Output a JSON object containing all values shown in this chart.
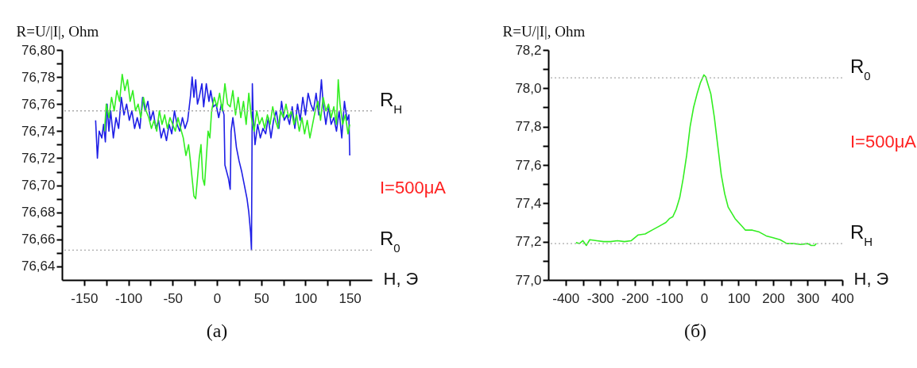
{
  "chart_data": [
    {
      "type": "line",
      "title": "(а)",
      "xlabel": "H, Э",
      "ylabel": "R=U/|I|, Ohm",
      "annotations": [
        "I=500μA"
      ],
      "xlim": [
        -175,
        175
      ],
      "xticks": [
        -150,
        {
          "value": -125,
          "label": null
        },
        -100,
        {
          "value": -75,
          "label": null
        },
        -50,
        {
          "value": -25,
          "label": null
        },
        0,
        {
          "value": 25,
          "label": null
        },
        50,
        {
          "value": 75,
          "label": null
        },
        100,
        {
          "value": 125,
          "label": null
        },
        150
      ],
      "ylim": [
        76.63,
        76.8
      ],
      "yticks": [
        {
          "value": 76.64,
          "label": "76,64"
        },
        {
          "value": 76.65,
          "label": null
        },
        {
          "value": 76.66,
          "label": "76,66"
        },
        {
          "value": 76.67,
          "label": null
        },
        {
          "value": 76.68,
          "label": "76,68"
        },
        {
          "value": 76.69,
          "label": null
        },
        {
          "value": 76.7,
          "label": "76,70"
        },
        {
          "value": 76.71,
          "label": null
        },
        {
          "value": 76.72,
          "label": "76,72"
        },
        {
          "value": 76.73,
          "label": null
        },
        {
          "value": 76.74,
          "label": "76,74"
        },
        {
          "value": 76.75,
          "label": null
        },
        {
          "value": 76.76,
          "label": "76,76"
        },
        {
          "value": 76.77,
          "label": null
        },
        {
          "value": 76.78,
          "label": "76,78"
        },
        {
          "value": 76.79,
          "label": null
        },
        {
          "value": 76.8,
          "label": "76,80"
        }
      ],
      "ref_lines": [
        {
          "axis": "y",
          "value": 76.755,
          "label": "R$_{H}$",
          "color": "#aaaaaa",
          "line_style": "dotted"
        },
        {
          "axis": "y",
          "value": 76.652,
          "label": "R$_{0}$",
          "color": "#aaaaaa",
          "line_style": "dotted"
        }
      ],
      "series": [
        {
          "color": "#1f1fe6",
          "x": [
            -137,
            -135,
            -133,
            -130,
            -128,
            -126,
            -124,
            -122,
            -120,
            -117,
            -114,
            -111,
            -108,
            -105,
            -102,
            -99,
            -96,
            -93,
            -90,
            -87,
            -84,
            -81,
            -78,
            -75,
            -72,
            -69,
            -66,
            -63,
            -60,
            -57,
            -54,
            -51,
            -48,
            -45,
            -42,
            -39,
            -36,
            -33,
            -30,
            -28,
            -26,
            -24,
            -22,
            -20,
            -17,
            -15,
            -12,
            -9,
            -7,
            -4,
            -1,
            2,
            5,
            8,
            9,
            11,
            13,
            15,
            16,
            18,
            20,
            22,
            25,
            28,
            31,
            34,
            36,
            38,
            39,
            40,
            41,
            43,
            46,
            49,
            52,
            55,
            58,
            61,
            64,
            67,
            70,
            73,
            76,
            79,
            82,
            85,
            88,
            91,
            94,
            97,
            100,
            103,
            106,
            109,
            112,
            115,
            118,
            120,
            123,
            126,
            129,
            132,
            135,
            138,
            141,
            144,
            147,
            149,
            150
          ],
          "values": [
            76.748,
            76.72,
            76.74,
            76.735,
            76.745,
            76.732,
            76.76,
            76.74,
            76.755,
            76.735,
            76.75,
            76.742,
            76.765,
            76.752,
            76.76,
            76.748,
            76.755,
            76.742,
            76.75,
            76.742,
            76.765,
            76.755,
            76.762,
            76.748,
            76.755,
            76.742,
            76.748,
            76.735,
            76.742,
            76.733,
            76.745,
            76.738,
            76.755,
            76.745,
            76.74,
            76.75,
            76.742,
            76.748,
            76.765,
            76.78,
            76.765,
            76.778,
            76.76,
            76.765,
            76.775,
            76.758,
            76.775,
            76.762,
            76.77,
            76.758,
            76.76,
            76.75,
            76.76,
            76.752,
            76.715,
            76.71,
            76.705,
            76.697,
            76.74,
            76.75,
            76.74,
            76.728,
            76.718,
            76.71,
            76.7,
            76.69,
            76.68,
            76.665,
            76.652,
            76.775,
            76.75,
            76.73,
            76.745,
            76.735,
            76.742,
            76.738,
            76.75,
            76.735,
            76.748,
            76.755,
            76.742,
            76.762,
            76.748,
            76.752,
            76.745,
            76.758,
            76.742,
            76.76,
            76.748,
            76.765,
            76.752,
            76.768,
            76.76,
            76.755,
            76.768,
            76.752,
            76.778,
            76.76,
            76.745,
            76.758,
            76.745,
            76.75,
            76.74,
            76.755,
            76.735,
            76.762,
            76.748,
            76.752,
            76.722
          ]
        },
        {
          "color": "#33ee22",
          "x": [
            -127,
            -125,
            -122,
            -119,
            -116,
            -113,
            -110,
            -107,
            -104,
            -101,
            -98,
            -95,
            -92,
            -89,
            -86,
            -83,
            -80,
            -77,
            -74,
            -71,
            -68,
            -65,
            -62,
            -59,
            -56,
            -53,
            -50,
            -47,
            -44,
            -41,
            -38,
            -35,
            -32,
            -30,
            -28,
            -26,
            -24,
            -22,
            -20,
            -18,
            -16,
            -14,
            -12,
            -10,
            -8,
            -6,
            -3,
            0,
            3,
            6,
            9,
            12,
            15,
            18,
            21,
            24,
            27,
            30,
            33,
            36,
            39,
            42,
            45,
            48,
            51,
            54,
            57,
            60,
            63,
            66,
            69,
            72,
            75,
            78,
            81,
            84,
            87,
            90,
            93,
            96,
            99,
            102,
            105,
            108,
            111,
            114,
            117,
            120,
            123,
            126,
            129,
            132,
            135,
            137,
            139,
            142,
            145,
            148,
            150
          ],
          "values": [
            76.74,
            76.76,
            76.75,
            76.765,
            76.755,
            76.77,
            76.762,
            76.782,
            76.77,
            76.778,
            76.762,
            76.77,
            76.755,
            76.76,
            76.75,
            76.765,
            76.755,
            76.75,
            76.742,
            76.748,
            76.74,
            76.755,
            76.745,
            76.752,
            76.742,
            76.75,
            76.745,
            76.74,
            76.75,
            76.742,
            76.735,
            76.722,
            76.73,
            76.718,
            76.705,
            76.692,
            76.69,
            76.705,
            76.72,
            76.73,
            76.705,
            76.7,
            76.72,
            76.74,
            76.735,
            76.755,
            76.765,
            76.758,
            76.768,
            76.755,
            76.775,
            76.76,
            76.758,
            76.77,
            76.752,
            76.765,
            76.75,
            76.762,
            76.745,
            76.768,
            76.75,
            76.74,
            76.755,
            76.745,
            76.75,
            76.742,
            76.752,
            76.745,
            76.758,
            76.748,
            76.742,
            76.755,
            76.75,
            76.76,
            76.75,
            76.755,
            76.745,
            76.752,
            76.74,
            76.75,
            76.738,
            76.748,
            76.735,
            76.745,
            76.755,
            76.762,
            76.748,
            76.765,
            76.755,
            76.76,
            76.75,
            76.758,
            76.745,
            76.778,
            76.76,
            76.745,
            76.752,
            76.738,
            76.745
          ]
        }
      ]
    },
    {
      "type": "line",
      "title": "(б)",
      "xlabel": "H, Э",
      "ylabel": "R=U/|I|, Ohm",
      "annotations": [
        "I=500μA"
      ],
      "xlim": [
        -450,
        400
      ],
      "xticks": [
        -400,
        {
          "value": -350,
          "label": null
        },
        -300,
        {
          "value": -250,
          "label": null
        },
        -200,
        {
          "value": -150,
          "label": null
        },
        -100,
        {
          "value": -50,
          "label": null
        },
        0,
        {
          "value": 50,
          "label": null
        },
        100,
        {
          "value": 150,
          "label": null
        },
        200,
        {
          "value": 250,
          "label": null
        },
        300,
        {
          "value": 350,
          "label": null
        },
        400
      ],
      "ylim": [
        77.0,
        78.2
      ],
      "yticks": [
        {
          "value": 77.0,
          "label": "77,0"
        },
        {
          "value": 77.1,
          "label": null
        },
        {
          "value": 77.2,
          "label": "77,2"
        },
        {
          "value": 77.3,
          "label": null
        },
        {
          "value": 77.4,
          "label": "77,4"
        },
        {
          "value": 77.5,
          "label": null
        },
        {
          "value": 77.6,
          "label": "77,6"
        },
        {
          "value": 77.7,
          "label": null
        },
        {
          "value": 77.8,
          "label": "77,8"
        },
        {
          "value": 77.9,
          "label": null
        },
        {
          "value": 78.0,
          "label": "78,0"
        },
        {
          "value": 78.1,
          "label": null
        },
        {
          "value": 78.2,
          "label": "78,2"
        }
      ],
      "ref_lines": [
        {
          "axis": "y",
          "value": 78.055,
          "label": "R$_{0}$",
          "color": "#aaaaaa",
          "line_style": "dotted"
        },
        {
          "axis": "y",
          "value": 77.19,
          "label": "R$_{H}$",
          "color": "#aaaaaa",
          "line_style": "dotted"
        }
      ],
      "series": [
        {
          "color": "#33ee22",
          "x": [
            -370,
            -360,
            -350,
            -340,
            -330,
            -310,
            -290,
            -270,
            -250,
            -230,
            -210,
            -190,
            -170,
            -150,
            -130,
            -110,
            -100,
            -90,
            -80,
            -70,
            -60,
            -50,
            -40,
            -30,
            -20,
            -10,
            0,
            5,
            10,
            20,
            30,
            40,
            50,
            60,
            70,
            80,
            90,
            100,
            110,
            120,
            140,
            160,
            180,
            200,
            220,
            240,
            260,
            280,
            300,
            310,
            320,
            325
          ],
          "values": [
            77.195,
            77.19,
            77.205,
            77.18,
            77.21,
            77.205,
            77.2,
            77.2,
            77.205,
            77.2,
            77.205,
            77.235,
            77.24,
            77.26,
            77.28,
            77.3,
            77.32,
            77.33,
            77.37,
            77.43,
            77.53,
            77.65,
            77.8,
            77.9,
            77.97,
            78.03,
            78.07,
            78.06,
            78.03,
            77.97,
            77.85,
            77.7,
            77.55,
            77.45,
            77.38,
            77.35,
            77.32,
            77.3,
            77.28,
            77.26,
            77.26,
            77.25,
            77.23,
            77.22,
            77.21,
            77.19,
            77.19,
            77.185,
            77.19,
            77.18,
            77.18,
            77.19
          ]
        }
      ]
    }
  ]
}
